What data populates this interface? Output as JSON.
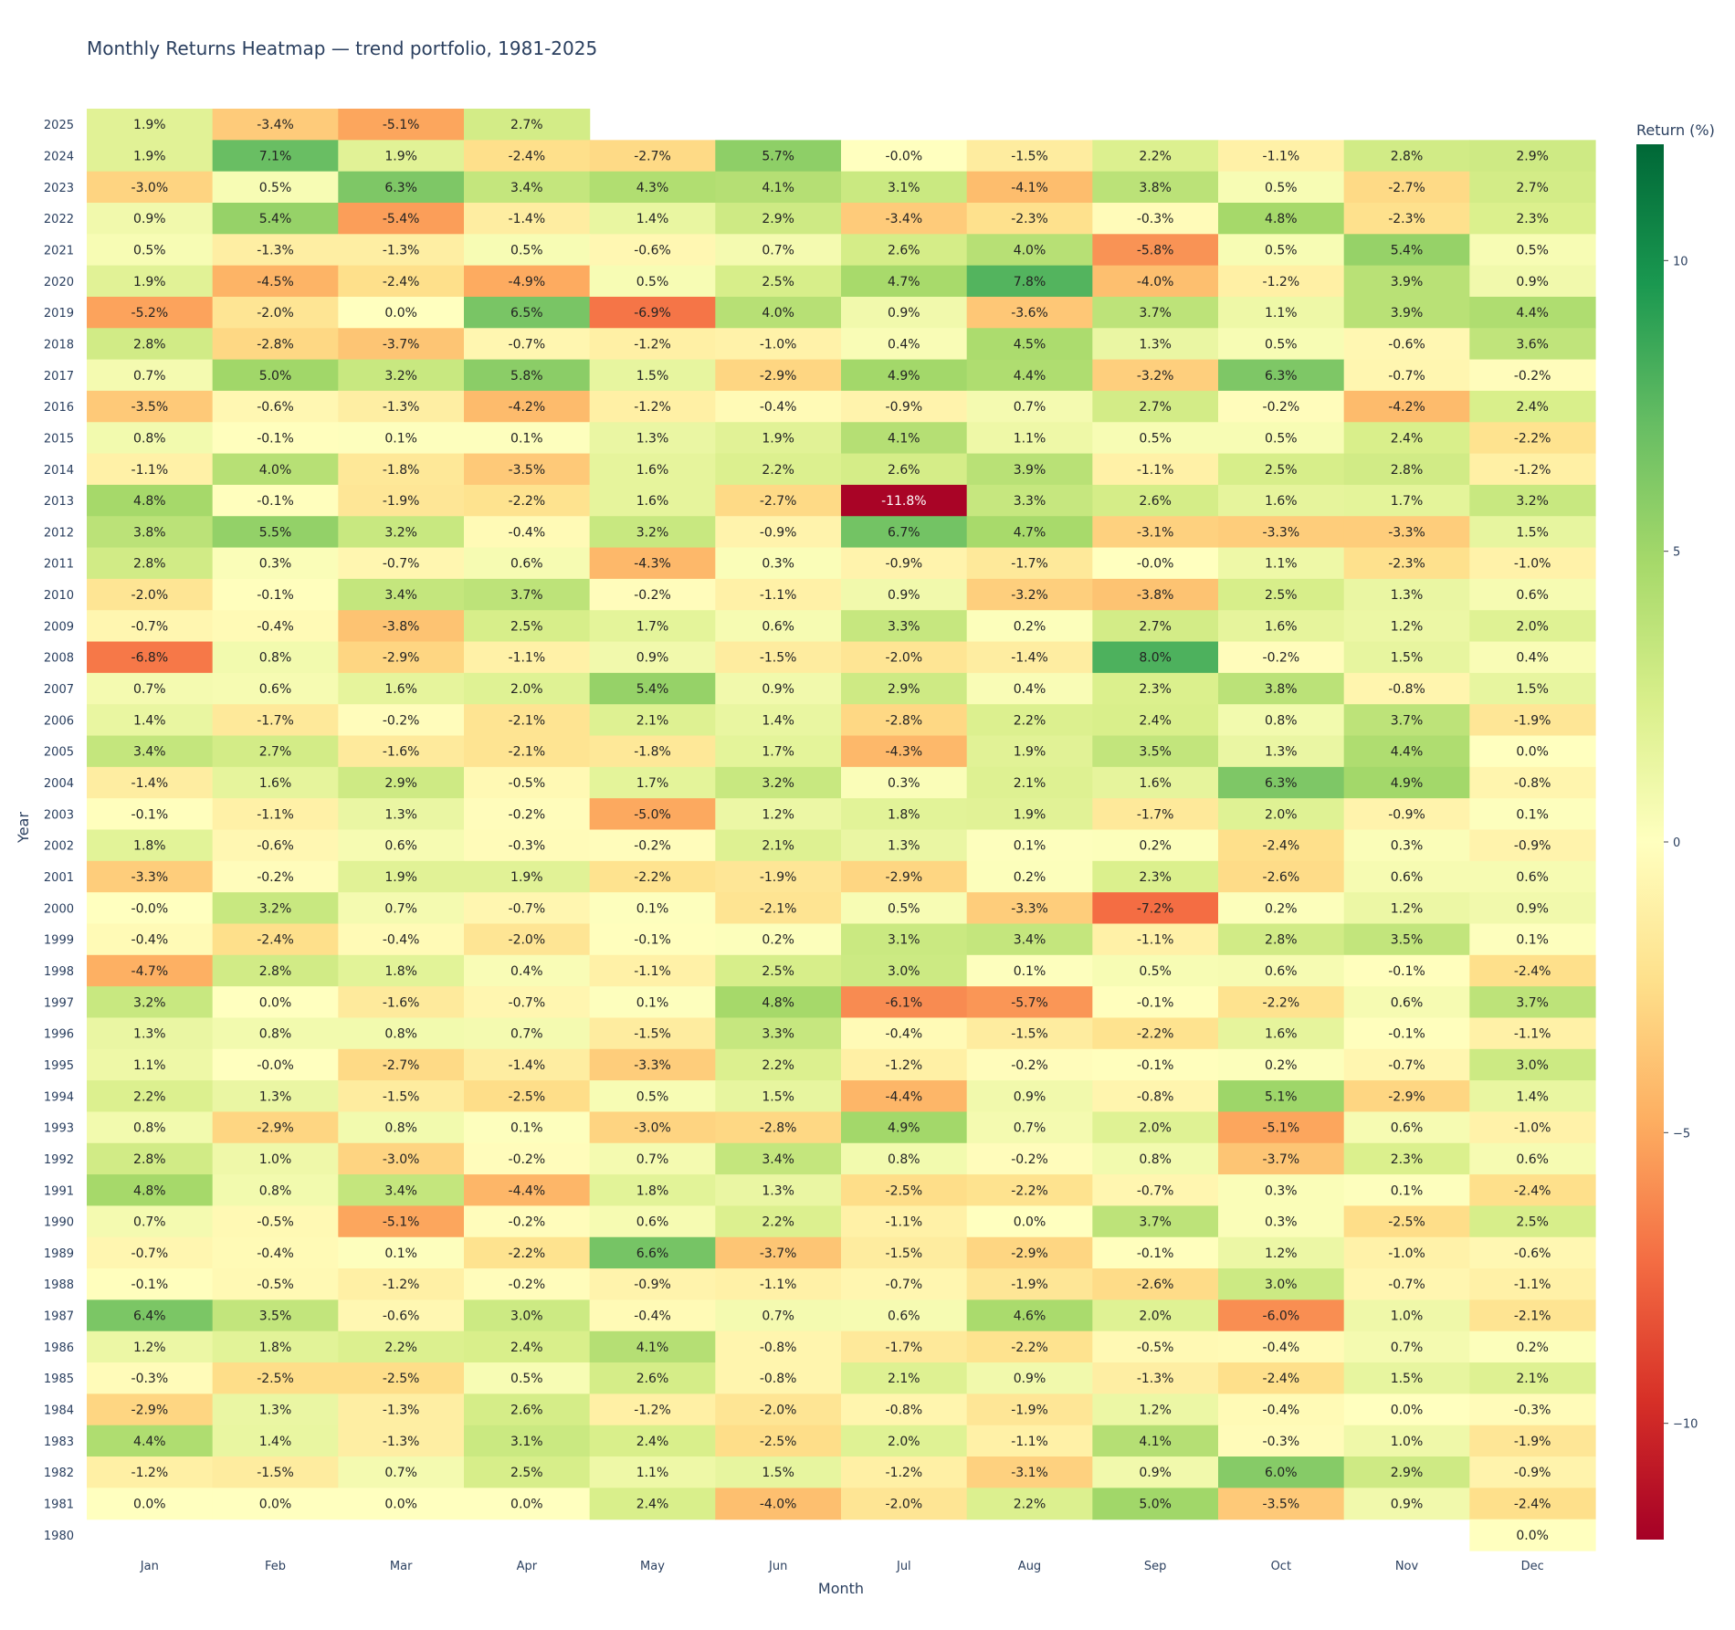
{
  "chart_data": {
    "type": "heatmap",
    "title": "Monthly Returns Heatmap — trend portfolio, 1981-2025",
    "xlabel": "Month",
    "ylabel": "Year",
    "colorbar_title": "Return (%)",
    "colorscale": "RdYlGn",
    "zrange": [
      -12,
      12
    ],
    "colorbar_ticks": [
      10,
      5,
      0,
      -5,
      -10
    ],
    "colorbar_tick_labels": [
      "10",
      "5",
      "0",
      "−5",
      "−10"
    ],
    "colorscale_stops": [
      "#a50026",
      "#d73027",
      "#f46d43",
      "#fdae61",
      "#fee08b",
      "#ffffbf",
      "#d9ef8b",
      "#a6d96a",
      "#66bd63",
      "#1a9850",
      "#006837"
    ],
    "grid": false,
    "legend": "colorbar-right",
    "months": [
      "Jan",
      "Feb",
      "Mar",
      "Apr",
      "May",
      "Jun",
      "Jul",
      "Aug",
      "Sep",
      "Oct",
      "Nov",
      "Dec"
    ],
    "years": [
      "2025",
      "2024",
      "2023",
      "2022",
      "2021",
      "2020",
      "2019",
      "2018",
      "2017",
      "2016",
      "2015",
      "2014",
      "2013",
      "2012",
      "2011",
      "2010",
      "2009",
      "2008",
      "2007",
      "2006",
      "2005",
      "2004",
      "2003",
      "2002",
      "2001",
      "2000",
      "1999",
      "1998",
      "1997",
      "1996",
      "1995",
      "1994",
      "1993",
      "1992",
      "1991",
      "1990",
      "1989",
      "1988",
      "1987",
      "1986",
      "1985",
      "1984",
      "1983",
      "1982",
      "1981",
      "1980"
    ],
    "values": [
      [
        "1.9",
        "-3.4",
        "-5.1",
        "2.7",
        null,
        null,
        null,
        null,
        null,
        null,
        null,
        null
      ],
      [
        "1.9",
        "7.1",
        "1.9",
        "-2.4",
        "-2.7",
        "5.7",
        "-0.0",
        "-1.5",
        "2.2",
        "-1.1",
        "2.8",
        "2.9"
      ],
      [
        "-3.0",
        "0.5",
        "6.3",
        "3.4",
        "4.3",
        "4.1",
        "3.1",
        "-4.1",
        "3.8",
        "0.5",
        "-2.7",
        "2.7"
      ],
      [
        "0.9",
        "5.4",
        "-5.4",
        "-1.4",
        "1.4",
        "2.9",
        "-3.4",
        "-2.3",
        "-0.3",
        "4.8",
        "-2.3",
        "2.3"
      ],
      [
        "0.5",
        "-1.3",
        "-1.3",
        "0.5",
        "-0.6",
        "0.7",
        "2.6",
        "4.0",
        "-5.8",
        "0.5",
        "5.4",
        "0.5"
      ],
      [
        "1.9",
        "-4.5",
        "-2.4",
        "-4.9",
        "0.5",
        "2.5",
        "4.7",
        "7.8",
        "-4.0",
        "-1.2",
        "3.9",
        "0.9"
      ],
      [
        "-5.2",
        "-2.0",
        "0.0",
        "6.5",
        "-6.9",
        "4.0",
        "0.9",
        "-3.6",
        "3.7",
        "1.1",
        "3.9",
        "4.4"
      ],
      [
        "2.8",
        "-2.8",
        "-3.7",
        "-0.7",
        "-1.2",
        "-1.0",
        "0.4",
        "4.5",
        "1.3",
        "0.5",
        "-0.6",
        "3.6"
      ],
      [
        "0.7",
        "5.0",
        "3.2",
        "5.8",
        "1.5",
        "-2.9",
        "4.9",
        "4.4",
        "-3.2",
        "6.3",
        "-0.7",
        "-0.2"
      ],
      [
        "-3.5",
        "-0.6",
        "-1.3",
        "-4.2",
        "-1.2",
        "-0.4",
        "-0.9",
        "0.7",
        "2.7",
        "-0.2",
        "-4.2",
        "2.4"
      ],
      [
        "0.8",
        "-0.1",
        "0.1",
        "0.1",
        "1.3",
        "1.9",
        "4.1",
        "1.1",
        "0.5",
        "0.5",
        "2.4",
        "-2.2"
      ],
      [
        "-1.1",
        "4.0",
        "-1.8",
        "-3.5",
        "1.6",
        "2.2",
        "2.6",
        "3.9",
        "-1.1",
        "2.5",
        "2.8",
        "-1.2"
      ],
      [
        "4.8",
        "-0.1",
        "-1.9",
        "-2.2",
        "1.6",
        "-2.7",
        "-11.8",
        "3.3",
        "2.6",
        "1.6",
        "1.7",
        "3.2"
      ],
      [
        "3.8",
        "5.5",
        "3.2",
        "-0.4",
        "3.2",
        "-0.9",
        "6.7",
        "4.7",
        "-3.1",
        "-3.3",
        "-3.3",
        "1.5"
      ],
      [
        "2.8",
        "0.3",
        "-0.7",
        "0.6",
        "-4.3",
        "0.3",
        "-0.9",
        "-1.7",
        "-0.0",
        "1.1",
        "-2.3",
        "-1.0"
      ],
      [
        "-2.0",
        "-0.1",
        "3.4",
        "3.7",
        "-0.2",
        "-1.1",
        "0.9",
        "-3.2",
        "-3.8",
        "2.5",
        "1.3",
        "0.6"
      ],
      [
        "-0.7",
        "-0.4",
        "-3.8",
        "2.5",
        "1.7",
        "0.6",
        "3.3",
        "0.2",
        "2.7",
        "1.6",
        "1.2",
        "2.0"
      ],
      [
        "-6.8",
        "0.8",
        "-2.9",
        "-1.1",
        "0.9",
        "-1.5",
        "-2.0",
        "-1.4",
        "8.0",
        "-0.2",
        "1.5",
        "0.4"
      ],
      [
        "0.7",
        "0.6",
        "1.6",
        "2.0",
        "5.4",
        "0.9",
        "2.9",
        "0.4",
        "2.3",
        "3.8",
        "-0.8",
        "1.5"
      ],
      [
        "1.4",
        "-1.7",
        "-0.2",
        "-2.1",
        "2.1",
        "1.4",
        "-2.8",
        "2.2",
        "2.4",
        "0.8",
        "3.7",
        "-1.9"
      ],
      [
        "3.4",
        "2.7",
        "-1.6",
        "-2.1",
        "-1.8",
        "1.7",
        "-4.3",
        "1.9",
        "3.5",
        "1.3",
        "4.4",
        "0.0"
      ],
      [
        "-1.4",
        "1.6",
        "2.9",
        "-0.5",
        "1.7",
        "3.2",
        "0.3",
        "2.1",
        "1.6",
        "6.3",
        "4.9",
        "-0.8"
      ],
      [
        "-0.1",
        "-1.1",
        "1.3",
        "-0.2",
        "-5.0",
        "1.2",
        "1.8",
        "1.9",
        "-1.7",
        "2.0",
        "-0.9",
        "0.1"
      ],
      [
        "1.8",
        "-0.6",
        "0.6",
        "-0.3",
        "-0.2",
        "2.1",
        "1.3",
        "0.1",
        "0.2",
        "-2.4",
        "0.3",
        "-0.9"
      ],
      [
        "-3.3",
        "-0.2",
        "1.9",
        "1.9",
        "-2.2",
        "-1.9",
        "-2.9",
        "0.2",
        "2.3",
        "-2.6",
        "0.6",
        "0.6"
      ],
      [
        "-0.0",
        "3.2",
        "0.7",
        "-0.7",
        "0.1",
        "-2.1",
        "0.5",
        "-3.3",
        "-7.2",
        "0.2",
        "1.2",
        "0.9"
      ],
      [
        "-0.4",
        "-2.4",
        "-0.4",
        "-2.0",
        "-0.1",
        "0.2",
        "3.1",
        "3.4",
        "-1.1",
        "2.8",
        "3.5",
        "0.1"
      ],
      [
        "-4.7",
        "2.8",
        "1.8",
        "0.4",
        "-1.1",
        "2.5",
        "3.0",
        "0.1",
        "0.5",
        "0.6",
        "-0.1",
        "-2.4"
      ],
      [
        "3.2",
        "0.0",
        "-1.6",
        "-0.7",
        "0.1",
        "4.8",
        "-6.1",
        "-5.7",
        "-0.1",
        "-2.2",
        "0.6",
        "3.7"
      ],
      [
        "1.3",
        "0.8",
        "0.8",
        "0.7",
        "-1.5",
        "3.3",
        "-0.4",
        "-1.5",
        "-2.2",
        "1.6",
        "-0.1",
        "-1.1"
      ],
      [
        "1.1",
        "-0.0",
        "-2.7",
        "-1.4",
        "-3.3",
        "2.2",
        "-1.2",
        "-0.2",
        "-0.1",
        "0.2",
        "-0.7",
        "3.0"
      ],
      [
        "2.2",
        "1.3",
        "-1.5",
        "-2.5",
        "0.5",
        "1.5",
        "-4.4",
        "0.9",
        "-0.8",
        "5.1",
        "-2.9",
        "1.4"
      ],
      [
        "0.8",
        "-2.9",
        "0.8",
        "0.1",
        "-3.0",
        "-2.8",
        "4.9",
        "0.7",
        "2.0",
        "-5.1",
        "0.6",
        "-1.0"
      ],
      [
        "2.8",
        "1.0",
        "-3.0",
        "-0.2",
        "0.7",
        "3.4",
        "0.8",
        "-0.2",
        "0.8",
        "-3.7",
        "2.3",
        "0.6"
      ],
      [
        "4.8",
        "0.8",
        "3.4",
        "-4.4",
        "1.8",
        "1.3",
        "-2.5",
        "-2.2",
        "-0.7",
        "0.3",
        "0.1",
        "-2.4"
      ],
      [
        "0.7",
        "-0.5",
        "-5.1",
        "-0.2",
        "0.6",
        "2.2",
        "-1.1",
        "0.0",
        "3.7",
        "0.3",
        "-2.5",
        "2.5"
      ],
      [
        "-0.7",
        "-0.4",
        "0.1",
        "-2.2",
        "6.6",
        "-3.7",
        "-1.5",
        "-2.9",
        "-0.1",
        "1.2",
        "-1.0",
        "-0.6"
      ],
      [
        "-0.1",
        "-0.5",
        "-1.2",
        "-0.2",
        "-0.9",
        "-1.1",
        "-0.7",
        "-1.9",
        "-2.6",
        "3.0",
        "-0.7",
        "-1.1"
      ],
      [
        "6.4",
        "3.5",
        "-0.6",
        "3.0",
        "-0.4",
        "0.7",
        "0.6",
        "4.6",
        "2.0",
        "-6.0",
        "1.0",
        "-2.1"
      ],
      [
        "1.2",
        "1.8",
        "2.2",
        "2.4",
        "4.1",
        "-0.8",
        "-1.7",
        "-2.2",
        "-0.5",
        "-0.4",
        "0.7",
        "0.2"
      ],
      [
        "-0.3",
        "-2.5",
        "-2.5",
        "0.5",
        "2.6",
        "-0.8",
        "2.1",
        "0.9",
        "-1.3",
        "-2.4",
        "1.5",
        "2.1"
      ],
      [
        "-2.9",
        "1.3",
        "-1.3",
        "2.6",
        "-1.2",
        "-2.0",
        "-0.8",
        "-1.9",
        "1.2",
        "-0.4",
        "0.0",
        "-0.3"
      ],
      [
        "4.4",
        "1.4",
        "-1.3",
        "3.1",
        "2.4",
        "-2.5",
        "2.0",
        "-1.1",
        "4.1",
        "-0.3",
        "1.0",
        "-1.9"
      ],
      [
        "-1.2",
        "-1.5",
        "0.7",
        "2.5",
        "1.1",
        "1.5",
        "-1.2",
        "-3.1",
        "0.9",
        "6.0",
        "2.9",
        "-0.9"
      ],
      [
        "0.0",
        "0.0",
        "0.0",
        "0.0",
        "2.4",
        "-4.0",
        "-2.0",
        "2.2",
        "5.0",
        "-3.5",
        "0.9",
        "-2.4"
      ],
      [
        null,
        null,
        null,
        null,
        null,
        null,
        null,
        null,
        null,
        null,
        null,
        "0.0"
      ]
    ]
  }
}
